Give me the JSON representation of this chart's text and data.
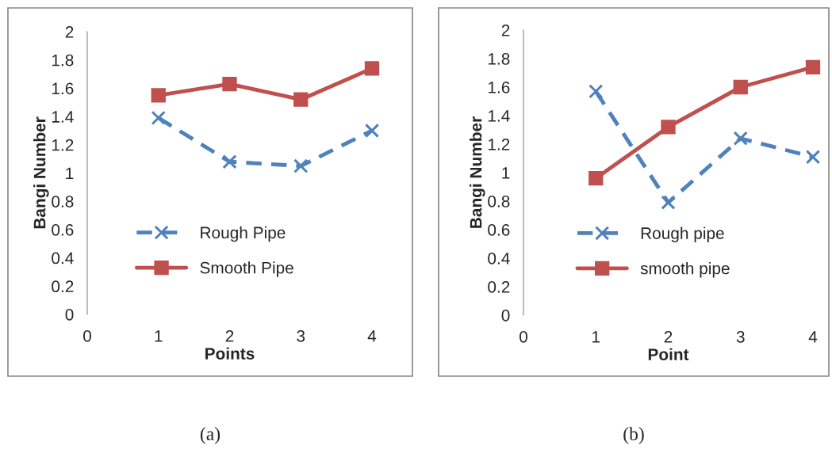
{
  "chart_data": [
    {
      "type": "line",
      "xlabel": "Points",
      "ylabel": "Bangi Number",
      "x": [
        1,
        2,
        3,
        4
      ],
      "xlim": [
        0,
        4
      ],
      "xticks": [
        0,
        1,
        2,
        3,
        4
      ],
      "ylim": [
        0,
        2
      ],
      "yticks": [
        0,
        0.2,
        0.4,
        0.6,
        0.8,
        1,
        1.2,
        1.4,
        1.6,
        1.8,
        2
      ],
      "grid": false,
      "legend": "bottom",
      "annotations": [
        "(a)"
      ],
      "series": [
        {
          "name": "Rough Pipe",
          "color": "#4f81bd",
          "marker": "cross",
          "line_style": "dashed",
          "values": [
            1.39,
            1.08,
            1.05,
            1.3
          ]
        },
        {
          "name": "Smooth Pipe",
          "color": "#c0504d",
          "marker": "square",
          "line_style": "solid",
          "values": [
            1.55,
            1.63,
            1.52,
            1.74
          ]
        }
      ]
    },
    {
      "type": "line",
      "xlabel": "Point",
      "ylabel": "Bangi Number",
      "x": [
        1,
        2,
        3,
        4
      ],
      "xlim": [
        0,
        4
      ],
      "xticks": [
        0,
        1,
        2,
        3,
        4
      ],
      "ylim": [
        0,
        2
      ],
      "yticks": [
        0,
        0.2,
        0.4,
        0.6,
        0.8,
        1,
        1.2,
        1.4,
        1.6,
        1.8,
        2
      ],
      "grid": false,
      "legend": "bottom",
      "annotations": [
        "(b)"
      ],
      "series": [
        {
          "name": "Rough pipe",
          "color": "#4f81bd",
          "marker": "cross",
          "line_style": "dashed",
          "values": [
            1.57,
            0.79,
            1.24,
            1.11
          ]
        },
        {
          "name": "smooth pipe",
          "color": "#c0504d",
          "marker": "square",
          "line_style": "solid",
          "values": [
            0.96,
            1.32,
            1.6,
            1.74
          ]
        }
      ]
    }
  ]
}
